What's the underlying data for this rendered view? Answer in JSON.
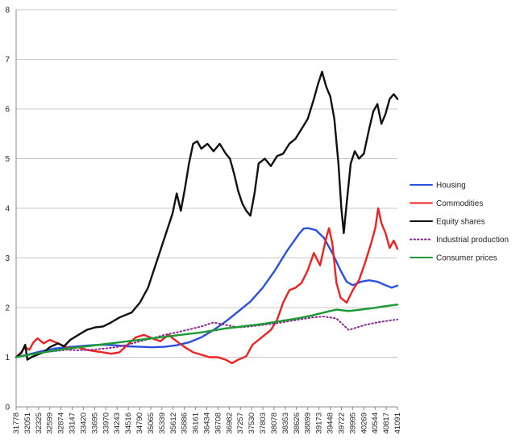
{
  "chart_data": {
    "type": "line",
    "ylim": [
      0,
      8
    ],
    "y_ticks": [
      "0",
      "1",
      "2",
      "3",
      "4",
      "5",
      "6",
      "7",
      "8"
    ],
    "x_tick_labels": [
      "31778",
      "32051",
      "32325",
      "32599",
      "32874",
      "33147",
      "33420",
      "33695",
      "33970",
      "34243",
      "34516",
      "34790",
      "35065",
      "35339",
      "35612",
      "35886",
      "36161",
      "36434",
      "36708",
      "36982",
      "37257",
      "37530",
      "37803",
      "38078",
      "38353",
      "38626",
      "38899",
      "39173",
      "39448",
      "39722",
      "39995",
      "40269",
      "40544",
      "40817",
      "41091"
    ],
    "grid": "horizontal",
    "legend_position": "right",
    "series": [
      {
        "name": "Housing",
        "color": "#2b4fe0",
        "style": "solid",
        "points": [
          [
            31778,
            1.0
          ],
          [
            32100,
            1.06
          ],
          [
            32400,
            1.12
          ],
          [
            32700,
            1.17
          ],
          [
            33000,
            1.2
          ],
          [
            33300,
            1.22
          ],
          [
            33600,
            1.24
          ],
          [
            33900,
            1.25
          ],
          [
            34200,
            1.24
          ],
          [
            34500,
            1.22
          ],
          [
            34800,
            1.21
          ],
          [
            35100,
            1.2
          ],
          [
            35400,
            1.21
          ],
          [
            35700,
            1.24
          ],
          [
            36000,
            1.3
          ],
          [
            36300,
            1.4
          ],
          [
            36600,
            1.55
          ],
          [
            36900,
            1.72
          ],
          [
            37200,
            1.92
          ],
          [
            37500,
            2.12
          ],
          [
            37800,
            2.4
          ],
          [
            38100,
            2.75
          ],
          [
            38400,
            3.15
          ],
          [
            38700,
            3.5
          ],
          [
            38800,
            3.59
          ],
          [
            38900,
            3.6
          ],
          [
            39100,
            3.56
          ],
          [
            39300,
            3.4
          ],
          [
            39500,
            3.1
          ],
          [
            39700,
            2.75
          ],
          [
            39850,
            2.52
          ],
          [
            40000,
            2.45
          ],
          [
            40200,
            2.52
          ],
          [
            40400,
            2.55
          ],
          [
            40600,
            2.52
          ],
          [
            40800,
            2.45
          ],
          [
            40950,
            2.4
          ],
          [
            41091,
            2.44
          ]
        ]
      },
      {
        "name": "Commodities",
        "color": "#ee2222",
        "style": "solid",
        "points": [
          [
            31778,
            1.0
          ],
          [
            31900,
            1.1
          ],
          [
            32000,
            1.2
          ],
          [
            32100,
            1.15
          ],
          [
            32200,
            1.3
          ],
          [
            32300,
            1.38
          ],
          [
            32450,
            1.28
          ],
          [
            32600,
            1.35
          ],
          [
            32800,
            1.28
          ],
          [
            32950,
            1.22
          ],
          [
            33100,
            1.18
          ],
          [
            33300,
            1.2
          ],
          [
            33500,
            1.15
          ],
          [
            33700,
            1.12
          ],
          [
            33900,
            1.1
          ],
          [
            34100,
            1.07
          ],
          [
            34300,
            1.1
          ],
          [
            34500,
            1.25
          ],
          [
            34700,
            1.4
          ],
          [
            34900,
            1.45
          ],
          [
            35100,
            1.38
          ],
          [
            35300,
            1.32
          ],
          [
            35500,
            1.45
          ],
          [
            35700,
            1.32
          ],
          [
            35900,
            1.2
          ],
          [
            36100,
            1.1
          ],
          [
            36300,
            1.05
          ],
          [
            36500,
            1.0
          ],
          [
            36700,
            1.0
          ],
          [
            36900,
            0.95
          ],
          [
            37050,
            0.88
          ],
          [
            37200,
            0.95
          ],
          [
            37400,
            1.02
          ],
          [
            37550,
            1.25
          ],
          [
            37700,
            1.35
          ],
          [
            37850,
            1.45
          ],
          [
            38000,
            1.55
          ],
          [
            38150,
            1.75
          ],
          [
            38300,
            2.1
          ],
          [
            38450,
            2.35
          ],
          [
            38600,
            2.4
          ],
          [
            38750,
            2.5
          ],
          [
            38900,
            2.75
          ],
          [
            39050,
            3.1
          ],
          [
            39200,
            2.85
          ],
          [
            39350,
            3.4
          ],
          [
            39420,
            3.6
          ],
          [
            39500,
            3.3
          ],
          [
            39600,
            2.5
          ],
          [
            39700,
            2.2
          ],
          [
            39850,
            2.1
          ],
          [
            40000,
            2.35
          ],
          [
            40150,
            2.55
          ],
          [
            40300,
            2.9
          ],
          [
            40450,
            3.3
          ],
          [
            40550,
            3.6
          ],
          [
            40620,
            4.0
          ],
          [
            40700,
            3.7
          ],
          [
            40800,
            3.5
          ],
          [
            40900,
            3.2
          ],
          [
            41000,
            3.35
          ],
          [
            41091,
            3.18
          ]
        ]
      },
      {
        "name": "Equity shares",
        "color": "#111111",
        "style": "solid",
        "points": [
          [
            31778,
            1.0
          ],
          [
            31900,
            1.08
          ],
          [
            32000,
            1.25
          ],
          [
            32051,
            0.95
          ],
          [
            32150,
            1.0
          ],
          [
            32300,
            1.05
          ],
          [
            32450,
            1.1
          ],
          [
            32600,
            1.2
          ],
          [
            32800,
            1.28
          ],
          [
            32950,
            1.22
          ],
          [
            33100,
            1.35
          ],
          [
            33300,
            1.45
          ],
          [
            33500,
            1.55
          ],
          [
            33700,
            1.6
          ],
          [
            33900,
            1.62
          ],
          [
            34100,
            1.7
          ],
          [
            34300,
            1.8
          ],
          [
            34450,
            1.85
          ],
          [
            34600,
            1.9
          ],
          [
            34800,
            2.1
          ],
          [
            35000,
            2.4
          ],
          [
            35200,
            2.9
          ],
          [
            35400,
            3.4
          ],
          [
            35600,
            3.9
          ],
          [
            35700,
            4.3
          ],
          [
            35800,
            3.95
          ],
          [
            35900,
            4.4
          ],
          [
            36000,
            4.9
          ],
          [
            36100,
            5.3
          ],
          [
            36200,
            5.35
          ],
          [
            36300,
            5.2
          ],
          [
            36450,
            5.3
          ],
          [
            36600,
            5.15
          ],
          [
            36750,
            5.3
          ],
          [
            36900,
            5.1
          ],
          [
            37000,
            5.0
          ],
          [
            37100,
            4.7
          ],
          [
            37200,
            4.35
          ],
          [
            37300,
            4.1
          ],
          [
            37400,
            3.95
          ],
          [
            37500,
            3.85
          ],
          [
            37600,
            4.3
          ],
          [
            37700,
            4.9
          ],
          [
            37850,
            5.0
          ],
          [
            38000,
            4.85
          ],
          [
            38150,
            5.05
          ],
          [
            38300,
            5.1
          ],
          [
            38450,
            5.3
          ],
          [
            38600,
            5.4
          ],
          [
            38750,
            5.6
          ],
          [
            38900,
            5.8
          ],
          [
            39050,
            6.2
          ],
          [
            39150,
            6.5
          ],
          [
            39250,
            6.75
          ],
          [
            39350,
            6.45
          ],
          [
            39450,
            6.25
          ],
          [
            39550,
            5.8
          ],
          [
            39650,
            4.9
          ],
          [
            39720,
            4.0
          ],
          [
            39780,
            3.5
          ],
          [
            39850,
            4.1
          ],
          [
            39950,
            4.9
          ],
          [
            40050,
            5.15
          ],
          [
            40150,
            5.0
          ],
          [
            40269,
            5.1
          ],
          [
            40400,
            5.6
          ],
          [
            40500,
            5.95
          ],
          [
            40600,
            6.1
          ],
          [
            40700,
            5.7
          ],
          [
            40800,
            5.9
          ],
          [
            40900,
            6.2
          ],
          [
            41000,
            6.3
          ],
          [
            41091,
            6.2
          ]
        ]
      },
      {
        "name": "Industrial production",
        "color": "#8a2a8f",
        "style": "dotted",
        "points": [
          [
            31778,
            1.0
          ],
          [
            32100,
            1.05
          ],
          [
            32400,
            1.1
          ],
          [
            32700,
            1.12
          ],
          [
            33000,
            1.15
          ],
          [
            33300,
            1.14
          ],
          [
            33600,
            1.15
          ],
          [
            33900,
            1.17
          ],
          [
            34200,
            1.2
          ],
          [
            34500,
            1.25
          ],
          [
            34800,
            1.32
          ],
          [
            35100,
            1.38
          ],
          [
            35400,
            1.45
          ],
          [
            35700,
            1.5
          ],
          [
            36000,
            1.56
          ],
          [
            36300,
            1.62
          ],
          [
            36600,
            1.7
          ],
          [
            36900,
            1.65
          ],
          [
            37200,
            1.6
          ],
          [
            37500,
            1.62
          ],
          [
            37800,
            1.65
          ],
          [
            38100,
            1.68
          ],
          [
            38400,
            1.72
          ],
          [
            38700,
            1.76
          ],
          [
            39000,
            1.8
          ],
          [
            39300,
            1.82
          ],
          [
            39600,
            1.78
          ],
          [
            39900,
            1.55
          ],
          [
            40100,
            1.6
          ],
          [
            40300,
            1.65
          ],
          [
            40600,
            1.7
          ],
          [
            40900,
            1.74
          ],
          [
            41091,
            1.76
          ]
        ]
      },
      {
        "name": "Consumer prices",
        "color": "#1a9a32",
        "style": "solid",
        "points": [
          [
            31778,
            1.0
          ],
          [
            32100,
            1.05
          ],
          [
            32400,
            1.09
          ],
          [
            32700,
            1.13
          ],
          [
            33000,
            1.17
          ],
          [
            33300,
            1.2
          ],
          [
            33600,
            1.23
          ],
          [
            33900,
            1.26
          ],
          [
            34200,
            1.29
          ],
          [
            34500,
            1.32
          ],
          [
            34800,
            1.35
          ],
          [
            35100,
            1.38
          ],
          [
            35400,
            1.41
          ],
          [
            35700,
            1.44
          ],
          [
            36000,
            1.47
          ],
          [
            36300,
            1.5
          ],
          [
            36600,
            1.54
          ],
          [
            36900,
            1.58
          ],
          [
            37200,
            1.61
          ],
          [
            37500,
            1.64
          ],
          [
            37800,
            1.67
          ],
          [
            38100,
            1.71
          ],
          [
            38400,
            1.75
          ],
          [
            38700,
            1.79
          ],
          [
            39000,
            1.84
          ],
          [
            39300,
            1.9
          ],
          [
            39600,
            1.96
          ],
          [
            39900,
            1.93
          ],
          [
            40200,
            1.96
          ],
          [
            40500,
            1.99
          ],
          [
            40800,
            2.03
          ],
          [
            41091,
            2.06
          ]
        ]
      }
    ]
  }
}
